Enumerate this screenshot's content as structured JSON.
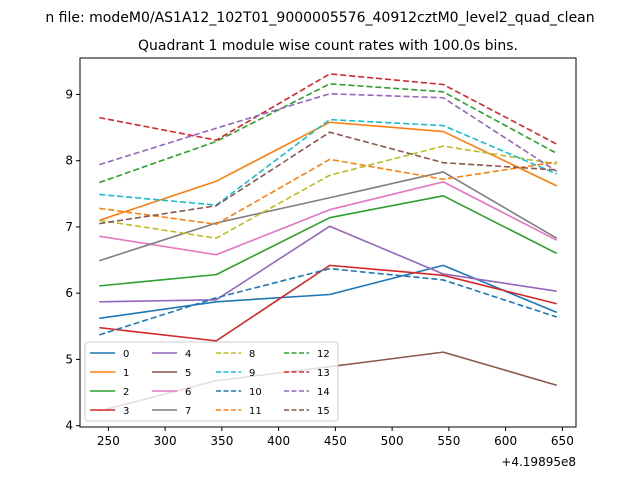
{
  "figure": {
    "suptitle": "n file: modeM0/AS1A12_102T01_9000005576_40912cztM0_level2_quad_clean"
  },
  "chart_data": {
    "type": "line",
    "title": "Quadrant 1 module wise count rates with 100.0s bins.",
    "xlabel": "",
    "ylabel": "",
    "x_offset_label": "+4.19895e8",
    "x": [
      242,
      345,
      445,
      545,
      645
    ],
    "xticks": [
      250,
      300,
      350,
      400,
      450,
      500,
      550,
      600,
      650
    ],
    "yticks": [
      4,
      5,
      6,
      7,
      8,
      9
    ],
    "xlim": [
      225,
      662
    ],
    "ylim": [
      3.98,
      9.55
    ],
    "grid": false,
    "legend": {
      "placement": "lower-left",
      "columns": 4
    },
    "series": [
      {
        "name": "0",
        "color": "#1f77b4",
        "dash": false,
        "values": [
          5.62,
          5.87,
          5.98,
          6.42,
          5.71
        ]
      },
      {
        "name": "1",
        "color": "#ff7f0e",
        "dash": false,
        "values": [
          7.1,
          7.69,
          8.58,
          8.44,
          7.62
        ]
      },
      {
        "name": "2",
        "color": "#2ca02c",
        "dash": false,
        "values": [
          6.11,
          6.28,
          7.14,
          7.47,
          6.6
        ]
      },
      {
        "name": "3",
        "color": "#d62728",
        "dash": false,
        "values": [
          5.48,
          5.28,
          6.42,
          6.27,
          5.84
        ]
      },
      {
        "name": "4",
        "color": "#9467bd",
        "dash": false,
        "values": [
          5.87,
          5.9,
          7.01,
          6.29,
          6.03
        ]
      },
      {
        "name": "5",
        "color": "#8c564b",
        "dash": false,
        "values": [
          4.22,
          4.68,
          4.89,
          5.11,
          4.61
        ]
      },
      {
        "name": "6",
        "color": "#e377c2",
        "dash": false,
        "values": [
          6.86,
          6.58,
          7.26,
          7.68,
          6.8
        ]
      },
      {
        "name": "7",
        "color": "#7f7f7f",
        "dash": false,
        "values": [
          6.49,
          7.06,
          7.44,
          7.83,
          6.83
        ]
      },
      {
        "name": "8",
        "color": "#bcbd22",
        "dash": true,
        "values": [
          7.1,
          6.83,
          7.78,
          8.22,
          7.95
        ]
      },
      {
        "name": "9",
        "color": "#17becf",
        "dash": true,
        "values": [
          7.49,
          7.33,
          8.62,
          8.53,
          7.8
        ]
      },
      {
        "name": "10",
        "color": "#1f77b4",
        "dash": true,
        "values": [
          5.37,
          5.93,
          6.37,
          6.2,
          5.64
        ]
      },
      {
        "name": "11",
        "color": "#ff7f0e",
        "dash": true,
        "values": [
          7.28,
          7.04,
          8.02,
          7.72,
          7.98
        ]
      },
      {
        "name": "12",
        "color": "#2ca02c",
        "dash": true,
        "values": [
          7.67,
          8.29,
          9.16,
          9.04,
          8.11
        ]
      },
      {
        "name": "13",
        "color": "#d62728",
        "dash": true,
        "values": [
          8.65,
          8.31,
          9.31,
          9.15,
          8.25
        ]
      },
      {
        "name": "14",
        "color": "#9467bd",
        "dash": true,
        "values": [
          7.94,
          8.49,
          9.01,
          8.95,
          7.84
        ]
      },
      {
        "name": "15",
        "color": "#8c564b",
        "dash": true,
        "values": [
          7.05,
          7.32,
          8.43,
          7.97,
          7.86
        ]
      }
    ]
  }
}
